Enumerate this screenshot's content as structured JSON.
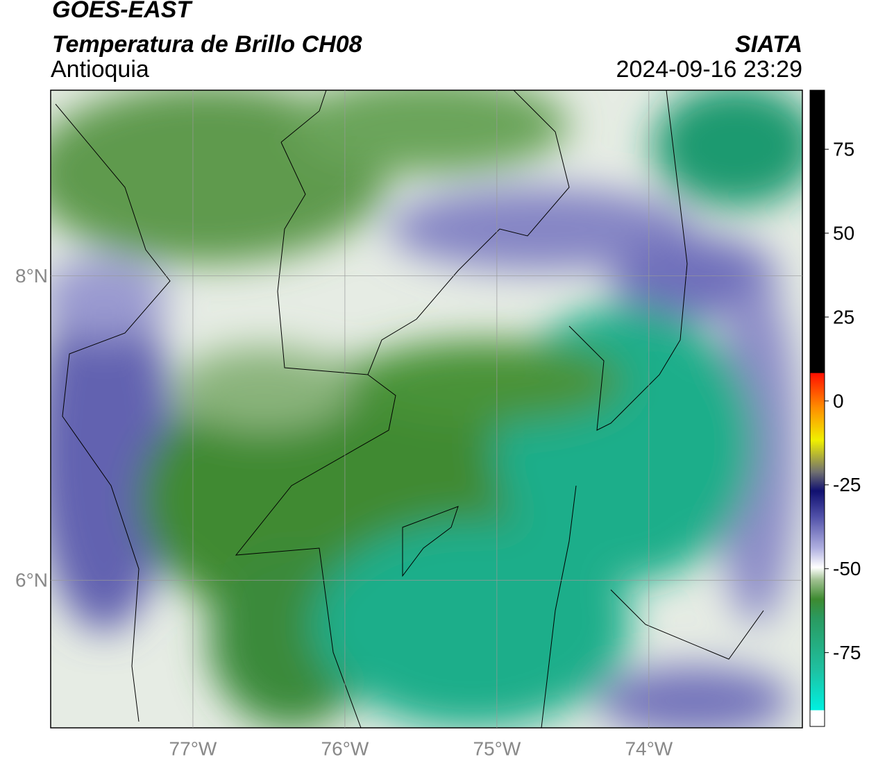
{
  "header": {
    "title": "GOES-EAST",
    "subtitle": "Temperatura de Brillo CH08",
    "region": "Antioquia",
    "source": "SIATA",
    "datetime": "2024-09-16 23:29"
  },
  "map": {
    "xlim": [
      -77.936,
      -72.99
    ],
    "ylim": [
      5.03,
      9.22
    ],
    "xticks": [
      {
        "value": -77,
        "label": "77°W"
      },
      {
        "value": -76,
        "label": "76°W"
      },
      {
        "value": -75,
        "label": "75°W"
      },
      {
        "value": -74,
        "label": "74°W"
      }
    ],
    "yticks": [
      {
        "value": 8,
        "label": "8°N"
      },
      {
        "value": 6,
        "label": "6°N"
      }
    ],
    "grid": true
  },
  "colorbar": {
    "lim": [
      -97,
      92.6
    ],
    "ticks": [
      75,
      50,
      25,
      0,
      -25,
      -50,
      -75
    ]
  }
}
